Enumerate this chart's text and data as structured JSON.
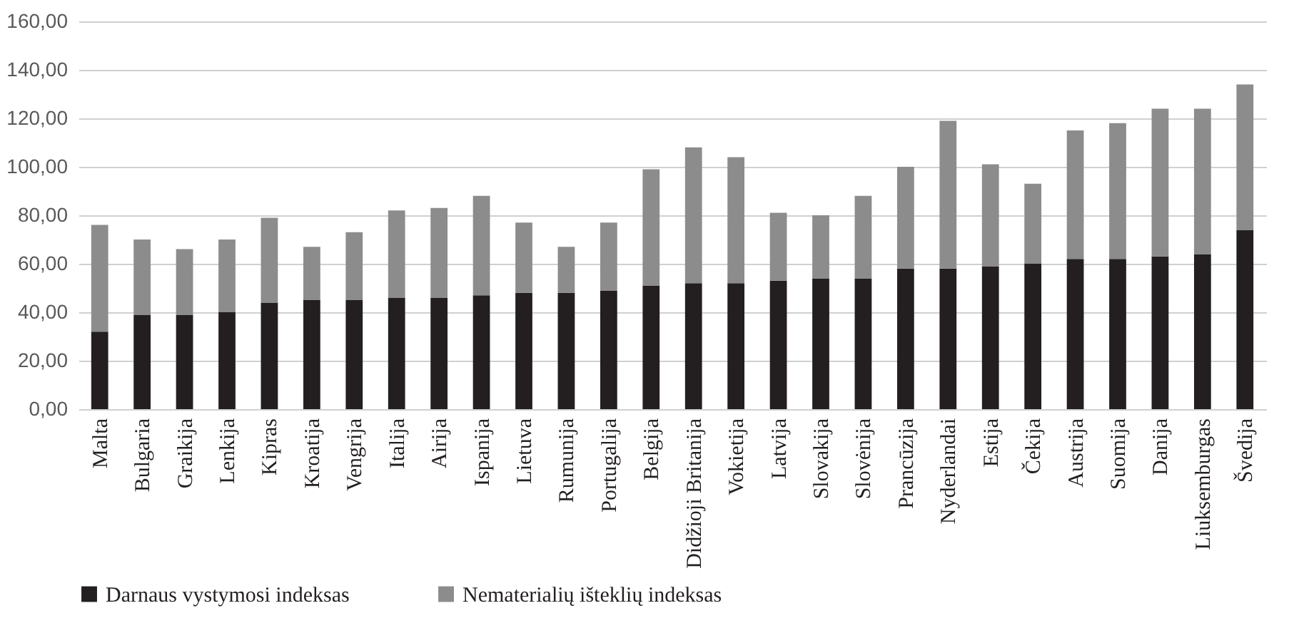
{
  "chart_data": {
    "type": "bar",
    "stacked": true,
    "categories": [
      "Malta",
      "Bulgaria",
      "Graikija",
      "Lenkija",
      "Kipras",
      "Kroatija",
      "Vengrija",
      "Italija",
      "Airija",
      "Ispanija",
      "Lietuva",
      "Rumunija",
      "Portugalija",
      "Belgija",
      "Didžioji Britanija",
      "Vokietija",
      "Latvija",
      "Slovakija",
      "Slovėnija",
      "Prancūzija",
      "Nyderlandai",
      "Estija",
      "Čekija",
      "Austrija",
      "Suomija",
      "Danija",
      "Liuksemburgas",
      "Švedija"
    ],
    "series": [
      {
        "name": "Darnaus vystymosi indeksas",
        "color": "#231f20",
        "values": [
          32,
          39,
          39,
          40,
          44,
          45,
          45,
          46,
          46,
          47,
          48,
          48,
          49,
          51,
          52,
          52,
          53,
          54,
          54,
          58,
          58,
          59,
          60,
          62,
          62,
          63,
          64,
          74
        ]
      },
      {
        "name": "Nematerialių išteklių indeksas",
        "color": "#8c8c8c",
        "values": [
          44,
          31,
          27,
          30,
          35,
          22,
          28,
          36,
          37,
          41,
          29,
          19,
          28,
          48,
          56,
          52,
          28,
          26,
          34,
          42,
          61,
          42,
          33,
          53,
          56,
          61,
          60,
          60
        ]
      }
    ],
    "ylim": [
      0,
      160
    ],
    "yticks": [
      {
        "value": 0,
        "label": "0,00"
      },
      {
        "value": 20,
        "label": "20,00"
      },
      {
        "value": 40,
        "label": "40,00"
      },
      {
        "value": 60,
        "label": "60,00"
      },
      {
        "value": 80,
        "label": "80,00"
      },
      {
        "value": 100,
        "label": "100,00"
      },
      {
        "value": 120,
        "label": "120,00"
      },
      {
        "value": 140,
        "label": "140,00"
      },
      {
        "value": 160,
        "label": "160,00"
      }
    ],
    "grid": "y",
    "legend": "bottom"
  }
}
